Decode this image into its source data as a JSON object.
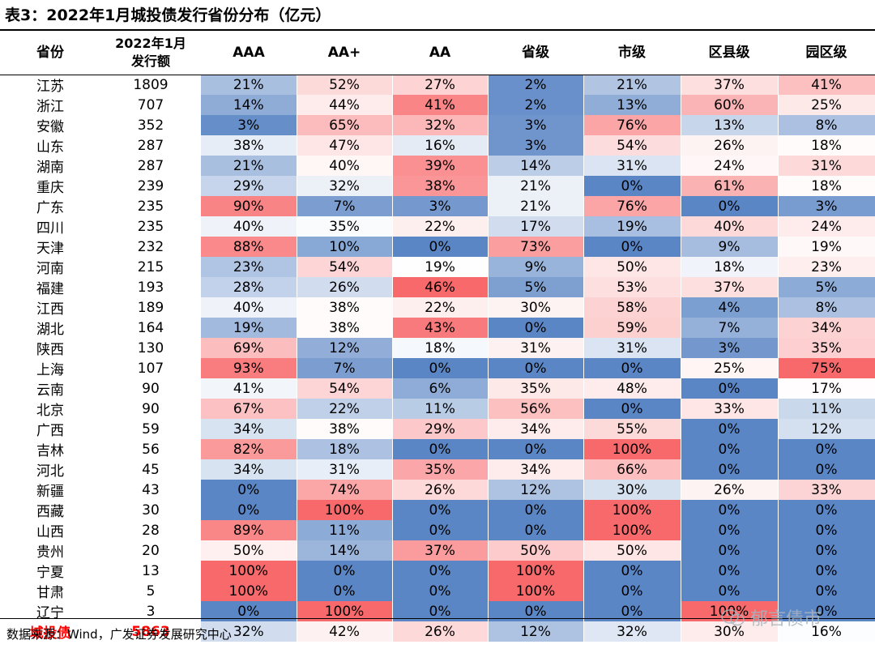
{
  "title": "表3：2022年1月城投债发行省份分布（亿元）",
  "headers": {
    "province": "省份",
    "amount_line1": "2022年1月",
    "amount_line2": "发行额",
    "aaa": "AAA",
    "aa_plus": "AA+",
    "aa": "AA",
    "provincial": "省级",
    "municipal": "市级",
    "county": "区县级",
    "park": "园区级"
  },
  "rows": [
    {
      "province": "江苏",
      "amount": "1809",
      "cells": [
        "21%",
        "52%",
        "27%",
        "2%",
        "21%",
        "37%",
        "41%"
      ]
    },
    {
      "province": "浙江",
      "amount": "707",
      "cells": [
        "14%",
        "44%",
        "41%",
        "2%",
        "13%",
        "60%",
        "25%"
      ]
    },
    {
      "province": "安徽",
      "amount": "352",
      "cells": [
        "3%",
        "65%",
        "32%",
        "3%",
        "76%",
        "13%",
        "8%"
      ]
    },
    {
      "province": "山东",
      "amount": "287",
      "cells": [
        "38%",
        "47%",
        "16%",
        "3%",
        "54%",
        "26%",
        "18%"
      ]
    },
    {
      "province": "湖南",
      "amount": "287",
      "cells": [
        "21%",
        "40%",
        "39%",
        "14%",
        "31%",
        "24%",
        "31%"
      ]
    },
    {
      "province": "重庆",
      "amount": "239",
      "cells": [
        "29%",
        "32%",
        "38%",
        "21%",
        "0%",
        "61%",
        "18%"
      ]
    },
    {
      "province": "广东",
      "amount": "235",
      "cells": [
        "90%",
        "7%",
        "3%",
        "21%",
        "76%",
        "0%",
        "3%"
      ]
    },
    {
      "province": "四川",
      "amount": "235",
      "cells": [
        "40%",
        "35%",
        "22%",
        "17%",
        "19%",
        "40%",
        "24%"
      ]
    },
    {
      "province": "天津",
      "amount": "232",
      "cells": [
        "88%",
        "10%",
        "0%",
        "73%",
        "0%",
        "9%",
        "19%"
      ]
    },
    {
      "province": "河南",
      "amount": "215",
      "cells": [
        "23%",
        "54%",
        "19%",
        "9%",
        "50%",
        "18%",
        "23%"
      ]
    },
    {
      "province": "福建",
      "amount": "193",
      "cells": [
        "28%",
        "26%",
        "46%",
        "5%",
        "53%",
        "37%",
        "5%"
      ]
    },
    {
      "province": "江西",
      "amount": "189",
      "cells": [
        "40%",
        "38%",
        "22%",
        "30%",
        "58%",
        "4%",
        "8%"
      ]
    },
    {
      "province": "湖北",
      "amount": "164",
      "cells": [
        "19%",
        "38%",
        "43%",
        "0%",
        "59%",
        "7%",
        "34%"
      ]
    },
    {
      "province": "陕西",
      "amount": "130",
      "cells": [
        "69%",
        "12%",
        "18%",
        "31%",
        "31%",
        "3%",
        "35%"
      ]
    },
    {
      "province": "上海",
      "amount": "107",
      "cells": [
        "93%",
        "7%",
        "0%",
        "0%",
        "0%",
        "25%",
        "75%"
      ]
    },
    {
      "province": "云南",
      "amount": "90",
      "cells": [
        "41%",
        "54%",
        "6%",
        "35%",
        "48%",
        "0%",
        "17%"
      ]
    },
    {
      "province": "北京",
      "amount": "90",
      "cells": [
        "67%",
        "22%",
        "11%",
        "56%",
        "0%",
        "33%",
        "11%"
      ]
    },
    {
      "province": "广西",
      "amount": "59",
      "cells": [
        "34%",
        "38%",
        "29%",
        "34%",
        "55%",
        "0%",
        "12%"
      ]
    },
    {
      "province": "吉林",
      "amount": "56",
      "cells": [
        "82%",
        "18%",
        "0%",
        "0%",
        "100%",
        "0%",
        "0%"
      ]
    },
    {
      "province": "河北",
      "amount": "45",
      "cells": [
        "34%",
        "31%",
        "35%",
        "34%",
        "66%",
        "0%",
        "0%"
      ]
    },
    {
      "province": "新疆",
      "amount": "43",
      "cells": [
        "0%",
        "74%",
        "26%",
        "12%",
        "30%",
        "26%",
        "33%"
      ]
    },
    {
      "province": "西藏",
      "amount": "30",
      "cells": [
        "0%",
        "100%",
        "0%",
        "0%",
        "100%",
        "0%",
        "0%"
      ]
    },
    {
      "province": "山西",
      "amount": "28",
      "cells": [
        "89%",
        "11%",
        "0%",
        "0%",
        "100%",
        "0%",
        "0%"
      ]
    },
    {
      "province": "贵州",
      "amount": "20",
      "cells": [
        "50%",
        "14%",
        "37%",
        "50%",
        "50%",
        "0%",
        "0%"
      ]
    },
    {
      "province": "宁夏",
      "amount": "13",
      "cells": [
        "100%",
        "0%",
        "0%",
        "100%",
        "0%",
        "0%",
        "0%"
      ]
    },
    {
      "province": "甘肃",
      "amount": "5",
      "cells": [
        "100%",
        "0%",
        "0%",
        "100%",
        "0%",
        "0%",
        "0%"
      ]
    },
    {
      "province": "辽宁",
      "amount": "3",
      "cells": [
        "0%",
        "100%",
        "0%",
        "0%",
        "0%",
        "100%",
        "0%"
      ]
    }
  ],
  "total": {
    "province": "城投债",
    "amount": "5863",
    "cells": [
      "32%",
      "42%",
      "26%",
      "12%",
      "32%",
      "30%",
      "16%"
    ]
  },
  "colors": {
    "low": "#5b86c5",
    "mid": "#ffffff",
    "high": "#f8696b",
    "total_label": "#ff0000"
  },
  "source": "数据来源：Wind，广发证券发展研究中心",
  "watermark": "郁言债市"
}
